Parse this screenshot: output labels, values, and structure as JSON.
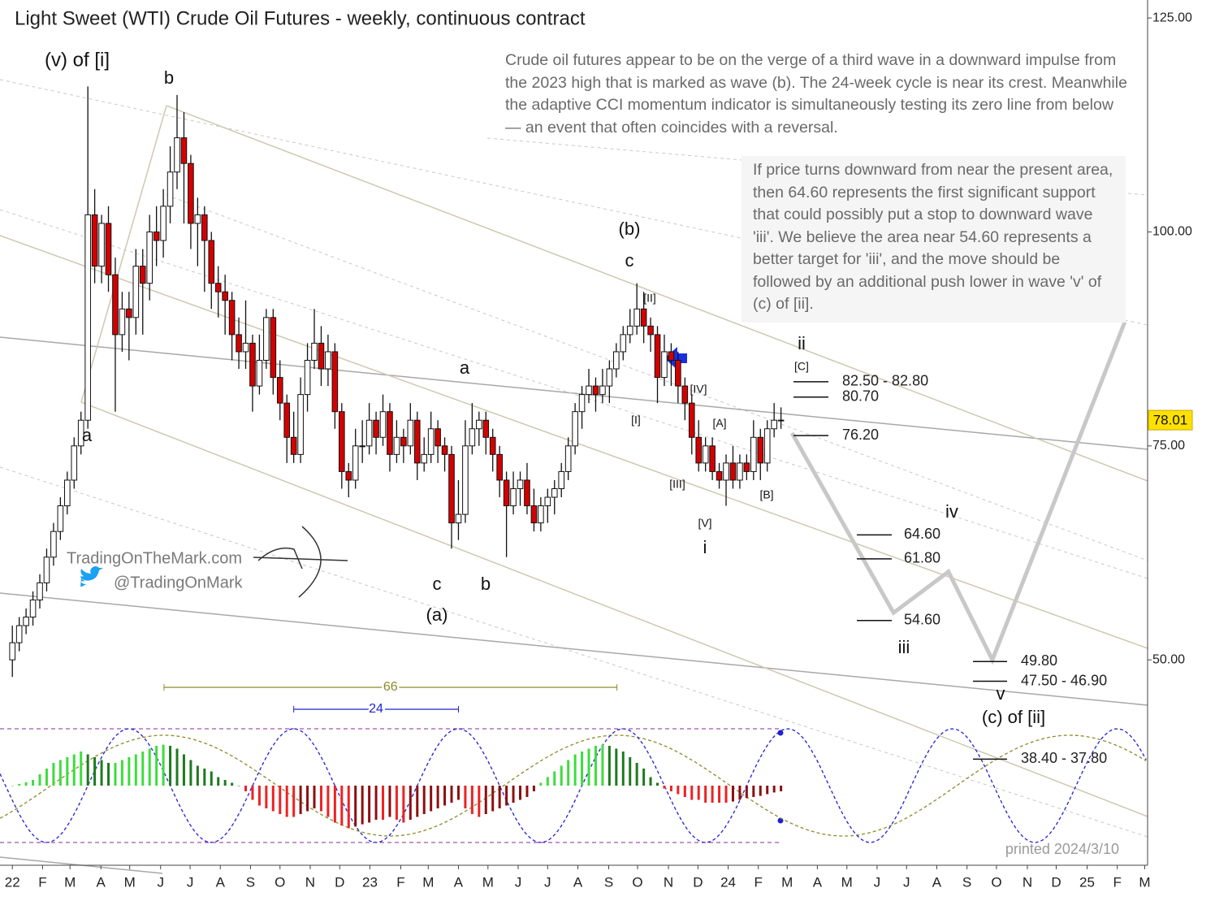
{
  "chart_data": {
    "type": "candlestick",
    "title": "Light Sweet (WTI) Crude Oil Futures - weekly, continuous contract",
    "commentary": [
      "Crude oil futures appear to be on the verge of a third wave in a downward impulse from the 2023 high that is marked as wave (b). The 24-week cycle is near its crest. Meanwhile the adaptive CCI momentum indicator is simultaneously testing its zero line from below — an event that often coincides with a reversal.",
      "If price turns downward from near the present area, then 64.60 represents the first significant support that could possibly put a stop to downward wave 'iii'. We believe the area near 54.60 represents a better target for 'iii', and the move should be followed by an additional push lower in wave 'v' of (c) of [ii]."
    ],
    "watermark": [
      "TradingOnTheMark.com",
      "@TradingOnMark"
    ],
    "printed": "printed 2024/3/10",
    "xlim": [
      -1.8,
      165.3
    ],
    "xticks": [
      {
        "value": 0,
        "label": "22"
      },
      {
        "value": 4.4,
        "label": "F"
      },
      {
        "value": 8.4,
        "label": "M"
      },
      {
        "value": 12.9,
        "label": "A"
      },
      {
        "value": 17.1,
        "label": "M"
      },
      {
        "value": 21.6,
        "label": "J"
      },
      {
        "value": 25.9,
        "label": "J"
      },
      {
        "value": 30.3,
        "label": "A"
      },
      {
        "value": 34.7,
        "label": "S"
      },
      {
        "value": 39,
        "label": "O"
      },
      {
        "value": 43.4,
        "label": "N"
      },
      {
        "value": 47.7,
        "label": "D"
      },
      {
        "value": 52.1,
        "label": "23"
      },
      {
        "value": 56.6,
        "label": "F"
      },
      {
        "value": 60.6,
        "label": "M"
      },
      {
        "value": 65,
        "label": "A"
      },
      {
        "value": 69.3,
        "label": "M"
      },
      {
        "value": 73.7,
        "label": "J"
      },
      {
        "value": 78,
        "label": "J"
      },
      {
        "value": 82.4,
        "label": "A"
      },
      {
        "value": 86.9,
        "label": "S"
      },
      {
        "value": 91.1,
        "label": "O"
      },
      {
        "value": 95.6,
        "label": "N"
      },
      {
        "value": 99.9,
        "label": "D"
      },
      {
        "value": 104.3,
        "label": "24"
      },
      {
        "value": 108.7,
        "label": "F"
      },
      {
        "value": 112.9,
        "label": "M"
      },
      {
        "value": 117.3,
        "label": "A"
      },
      {
        "value": 121.6,
        "label": "M"
      },
      {
        "value": 126,
        "label": "J"
      },
      {
        "value": 130.3,
        "label": "J"
      },
      {
        "value": 134.7,
        "label": "A"
      },
      {
        "value": 139.1,
        "label": "S"
      },
      {
        "value": 143.4,
        "label": "O"
      },
      {
        "value": 147.9,
        "label": "N"
      },
      {
        "value": 152.1,
        "label": "D"
      },
      {
        "value": 156.6,
        "label": "25"
      },
      {
        "value": 161,
        "label": "F"
      },
      {
        "value": 165,
        "label": "M"
      }
    ],
    "ylim": [
      26,
      127.1
    ],
    "yticks": [
      {
        "value": 50,
        "label": "50.00"
      },
      {
        "value": 75,
        "label": "75.00"
      },
      {
        "value": 100,
        "label": "100.00"
      },
      {
        "value": 125,
        "label": "125.00"
      }
    ],
    "colors": {
      "up": "#ffffff",
      "down": "#d40000"
    },
    "last_price": 78.01,
    "candles": [
      [
        0,
        50,
        54,
        48,
        52
      ],
      [
        1,
        52,
        55,
        51,
        54
      ],
      [
        2,
        54,
        56,
        53,
        55
      ],
      [
        3,
        55,
        58,
        54,
        57
      ],
      [
        4,
        57,
        60,
        56,
        59
      ],
      [
        5,
        59,
        63,
        58,
        62
      ],
      [
        6,
        62,
        66,
        61,
        65
      ],
      [
        7,
        65,
        69,
        64,
        68
      ],
      [
        8,
        68,
        72,
        67,
        71
      ],
      [
        9,
        71,
        76,
        70,
        75
      ],
      [
        10,
        75,
        79,
        74,
        78
      ],
      [
        11,
        78,
        117,
        77,
        102
      ],
      [
        12,
        102,
        105,
        94,
        96
      ],
      [
        13,
        96,
        102,
        94,
        101
      ],
      [
        14,
        101,
        103,
        93,
        95
      ],
      [
        15,
        95,
        97,
        79,
        88
      ],
      [
        16,
        88,
        93,
        86,
        91
      ],
      [
        17,
        91,
        93,
        85,
        90
      ],
      [
        18,
        90,
        98,
        88,
        96
      ],
      [
        19,
        96,
        98,
        88,
        94
      ],
      [
        20,
        94,
        102,
        92,
        100
      ],
      [
        21,
        100,
        103,
        96,
        99
      ],
      [
        22,
        99,
        105,
        97,
        103
      ],
      [
        23,
        103,
        110,
        101,
        107
      ],
      [
        24,
        107,
        116,
        105,
        111
      ],
      [
        25,
        111,
        114,
        101,
        108
      ],
      [
        26,
        108,
        109,
        98,
        101
      ],
      [
        27,
        101,
        104,
        96,
        102
      ],
      [
        28,
        102,
        103,
        93,
        99
      ],
      [
        29,
        99,
        100,
        91,
        94
      ],
      [
        30,
        94,
        96,
        90,
        93
      ],
      [
        31,
        93,
        95,
        88,
        92
      ],
      [
        32,
        92,
        93,
        85,
        88
      ],
      [
        33,
        88,
        90,
        84,
        86
      ],
      [
        34,
        86,
        92,
        84,
        87
      ],
      [
        35,
        87,
        88,
        79,
        82
      ],
      [
        36,
        82,
        88,
        81,
        85
      ],
      [
        37,
        85,
        91,
        84,
        90
      ],
      [
        38,
        90,
        91,
        81,
        83
      ],
      [
        39,
        83,
        85,
        78,
        80
      ],
      [
        40,
        80,
        81,
        73,
        76
      ],
      [
        41,
        76,
        79,
        73,
        74
      ],
      [
        42,
        74,
        83,
        73,
        81
      ],
      [
        43,
        81,
        87,
        79,
        85
      ],
      [
        44,
        85,
        91,
        84,
        87
      ],
      [
        45,
        87,
        89,
        82,
        84
      ],
      [
        46,
        84,
        88,
        82,
        86
      ],
      [
        47,
        86,
        87,
        77,
        79
      ],
      [
        48,
        79,
        80,
        70,
        72
      ],
      [
        49,
        72,
        73,
        69,
        71
      ],
      [
        50,
        71,
        77,
        70,
        75
      ],
      [
        51,
        75,
        78,
        73,
        75
      ],
      [
        52,
        75,
        80,
        74,
        78
      ],
      [
        53,
        78,
        79,
        74,
        76
      ],
      [
        54,
        76,
        81,
        75,
        79
      ],
      [
        55,
        79,
        80,
        72,
        74
      ],
      [
        56,
        74,
        78,
        73,
        76
      ],
      [
        57,
        76,
        77,
        73,
        75
      ],
      [
        58,
        75,
        80,
        74,
        78
      ],
      [
        59,
        78,
        79,
        71,
        73
      ],
      [
        60,
        73,
        76,
        72,
        74
      ],
      [
        61,
        74,
        79,
        73,
        77
      ],
      [
        62,
        77,
        78,
        73,
        75
      ],
      [
        63,
        75,
        76,
        72,
        74
      ],
      [
        64,
        74,
        75,
        63,
        66
      ],
      [
        65,
        66,
        71,
        64,
        67
      ],
      [
        66,
        67,
        78,
        66,
        75
      ],
      [
        67,
        75,
        80,
        74,
        77
      ],
      [
        68,
        77,
        79,
        75,
        78
      ],
      [
        69,
        78,
        79,
        74,
        76
      ],
      [
        70,
        76,
        77,
        72,
        74
      ],
      [
        71,
        74,
        75,
        69,
        71
      ],
      [
        72,
        71,
        72,
        62,
        68
      ],
      [
        73,
        68,
        72,
        67,
        70
      ],
      [
        74,
        70,
        72,
        68,
        71
      ],
      [
        75,
        71,
        73,
        67,
        68
      ],
      [
        76,
        68,
        70,
        65,
        66
      ],
      [
        77,
        66,
        69,
        65,
        68
      ],
      [
        78,
        68,
        70,
        66,
        69
      ],
      [
        79,
        69,
        71,
        67,
        70
      ],
      [
        80,
        70,
        73,
        69,
        72
      ],
      [
        81,
        72,
        76,
        71,
        75
      ],
      [
        82,
        75,
        80,
        74,
        79
      ],
      [
        83,
        79,
        82,
        77,
        81
      ],
      [
        84,
        81,
        84,
        80,
        82
      ],
      [
        85,
        82,
        83,
        79,
        81
      ],
      [
        86,
        81,
        84,
        80,
        82
      ],
      [
        87,
        82,
        85,
        80,
        84
      ],
      [
        88,
        84,
        87,
        83,
        86
      ],
      [
        89,
        86,
        89,
        85,
        88
      ],
      [
        90,
        88,
        91,
        87,
        89
      ],
      [
        91,
        89,
        94,
        88,
        91
      ],
      [
        92,
        91,
        93,
        87,
        89
      ],
      [
        93,
        89,
        90,
        86,
        88
      ],
      [
        94,
        88,
        89,
        80,
        83
      ],
      [
        95,
        83,
        88,
        82,
        86
      ],
      [
        96,
        86,
        87,
        82,
        85
      ],
      [
        97,
        85,
        86,
        80,
        82
      ],
      [
        98,
        82,
        83,
        78,
        80
      ],
      [
        99,
        80,
        81,
        74,
        76
      ],
      [
        100,
        76,
        78,
        72,
        73
      ],
      [
        101,
        73,
        76,
        72,
        75
      ],
      [
        102,
        75,
        76,
        71,
        72
      ],
      [
        103,
        72,
        73,
        70,
        71
      ],
      [
        104,
        71,
        74,
        68,
        73
      ],
      [
        105,
        73,
        75,
        70,
        71
      ],
      [
        106,
        71,
        74,
        70,
        73
      ],
      [
        107,
        73,
        74,
        71,
        72
      ],
      [
        108,
        72,
        78,
        71,
        76
      ],
      [
        109,
        76,
        77,
        71,
        73
      ],
      [
        110,
        73,
        78,
        72,
        77
      ],
      [
        111,
        77,
        80,
        76,
        78
      ],
      [
        112,
        78,
        79.5,
        77,
        78.01
      ]
    ],
    "cci": {
      "ylim": [
        -100,
        100
      ],
      "values": [
        0,
        3,
        6,
        10,
        20,
        30,
        40,
        45,
        50,
        55,
        60,
        55,
        50,
        45,
        40,
        40,
        45,
        50,
        55,
        60,
        65,
        70,
        72,
        70,
        65,
        55,
        45,
        35,
        30,
        25,
        15,
        10,
        5,
        0,
        -10,
        -25,
        -35,
        -40,
        -45,
        -50,
        -55,
        -55,
        -50,
        -45,
        -40,
        -45,
        -55,
        -65,
        -70,
        -75,
        -72,
        -68,
        -65,
        -60,
        -60,
        -55,
        -60,
        -65,
        -60,
        -55,
        -50,
        -45,
        -40,
        -35,
        -30,
        -25,
        -40,
        -50,
        -55,
        -50,
        -45,
        -40,
        -35,
        -30,
        -25,
        -20,
        -10,
        5,
        15,
        25,
        35,
        45,
        55,
        60,
        65,
        70,
        72,
        70,
        65,
        60,
        50,
        40,
        30,
        15,
        5,
        -5,
        -10,
        -15,
        -20,
        -25,
        -25,
        -30,
        -30,
        -30,
        -30,
        -28,
        -25,
        -22,
        -20,
        -18,
        -15,
        -12,
        -10
      ]
    },
    "levels": [
      {
        "values": [
          82.5,
          82.8
        ],
        "label": "82.50 - 82.80"
      },
      {
        "values": [
          80.7
        ],
        "label": "80.70"
      },
      {
        "values": [
          76.2
        ],
        "label": "76.20"
      },
      {
        "values": [
          64.6
        ],
        "label": "64.60"
      },
      {
        "values": [
          61.8
        ],
        "label": "61.80"
      },
      {
        "values": [
          54.6
        ],
        "label": "54.60"
      },
      {
        "values": [
          49.8
        ],
        "label": "49.80"
      },
      {
        "values": [
          47.5,
          46.9
        ],
        "label": "47.50 - 46.90"
      },
      {
        "values": [
          38.4,
          37.8
        ],
        "label": "38.40 - 37.80"
      }
    ],
    "projection": {
      "color": "#c8c8c8",
      "x": [
        113.6,
        128.4,
        136.4,
        142.8,
        162.1
      ],
      "values": [
        76.5,
        55.5,
        60.3,
        50,
        89.5
      ]
    },
    "cycles": [
      {
        "period": 66,
        "x": 22.1,
        "color": "#8b8b2a"
      },
      {
        "period": 24,
        "x": 41,
        "color": "#2020d0"
      }
    ],
    "wave_labels": [
      "(v) of [i]",
      "b",
      "a",
      "a",
      "c",
      "b",
      "(a)",
      "(b)",
      "c",
      "[II]",
      "[I]",
      "[IV]",
      "[III]",
      "[V]",
      "i",
      "[A]",
      "[B]",
      "[C]",
      "ii",
      "iv",
      "iii",
      "v",
      "(c) of [ii]"
    ]
  }
}
